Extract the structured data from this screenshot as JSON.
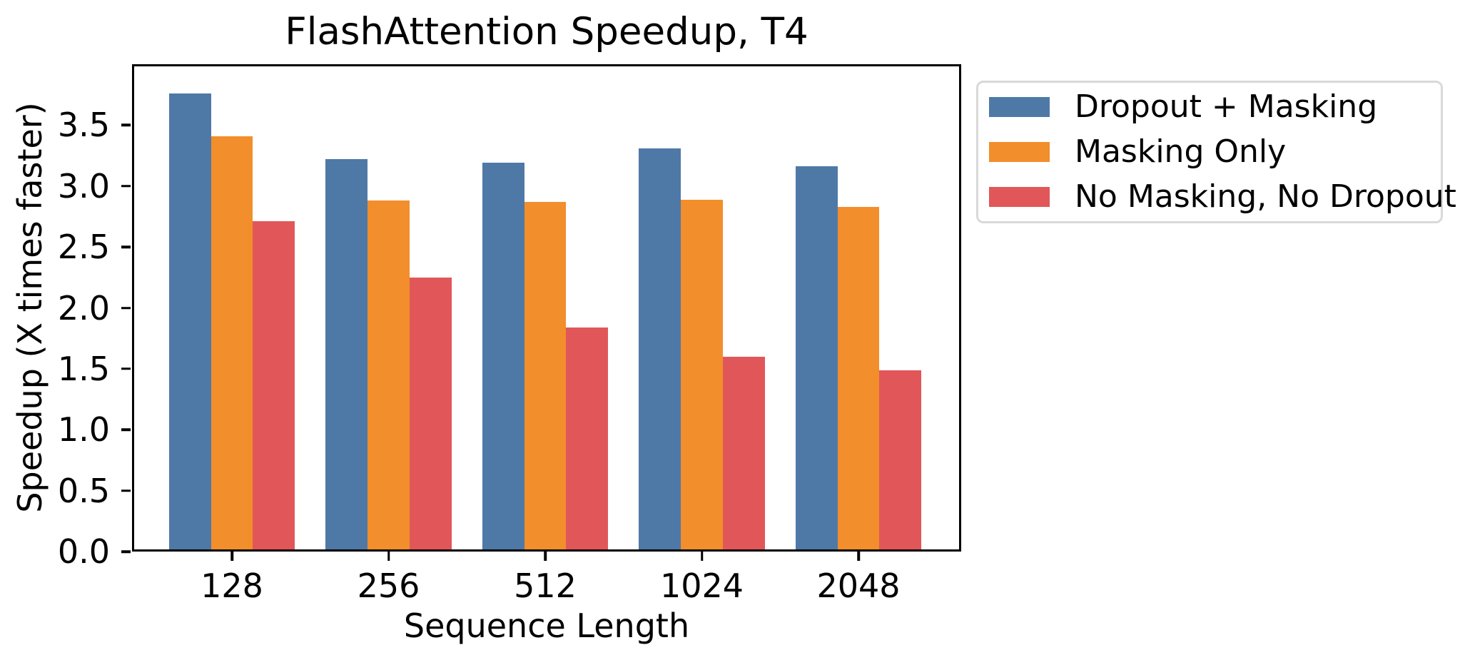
{
  "chart_data": {
    "type": "bar",
    "title": "FlashAttention Speedup, T4",
    "xlabel": "Sequence Length",
    "ylabel": "Speedup (X times faster)",
    "categories": [
      "128",
      "256",
      "512",
      "1024",
      "2048"
    ],
    "series": [
      {
        "name": "Dropout + Masking",
        "color": "#4e79a7",
        "values": [
          3.76,
          3.22,
          3.19,
          3.31,
          3.16
        ]
      },
      {
        "name": "Masking Only",
        "color": "#f28e2b",
        "values": [
          3.41,
          2.88,
          2.87,
          2.89,
          2.83
        ]
      },
      {
        "name": "No Masking, No Dropout",
        "color": "#e15759",
        "values": [
          2.71,
          2.25,
          1.84,
          1.6,
          1.49
        ]
      }
    ],
    "ylim": [
      0,
      4.0
    ],
    "yticks": [
      0.0,
      0.5,
      1.0,
      1.5,
      2.0,
      2.5,
      3.0,
      3.5
    ],
    "ytick_labels": [
      "0.0",
      "0.5",
      "1.0",
      "1.5",
      "2.0",
      "2.5",
      "3.0",
      "3.5"
    ],
    "legend_position": "outside upper right",
    "grid": false,
    "background_color": "#ffffff",
    "spine_color": "#000000",
    "text_color": "#000000"
  }
}
